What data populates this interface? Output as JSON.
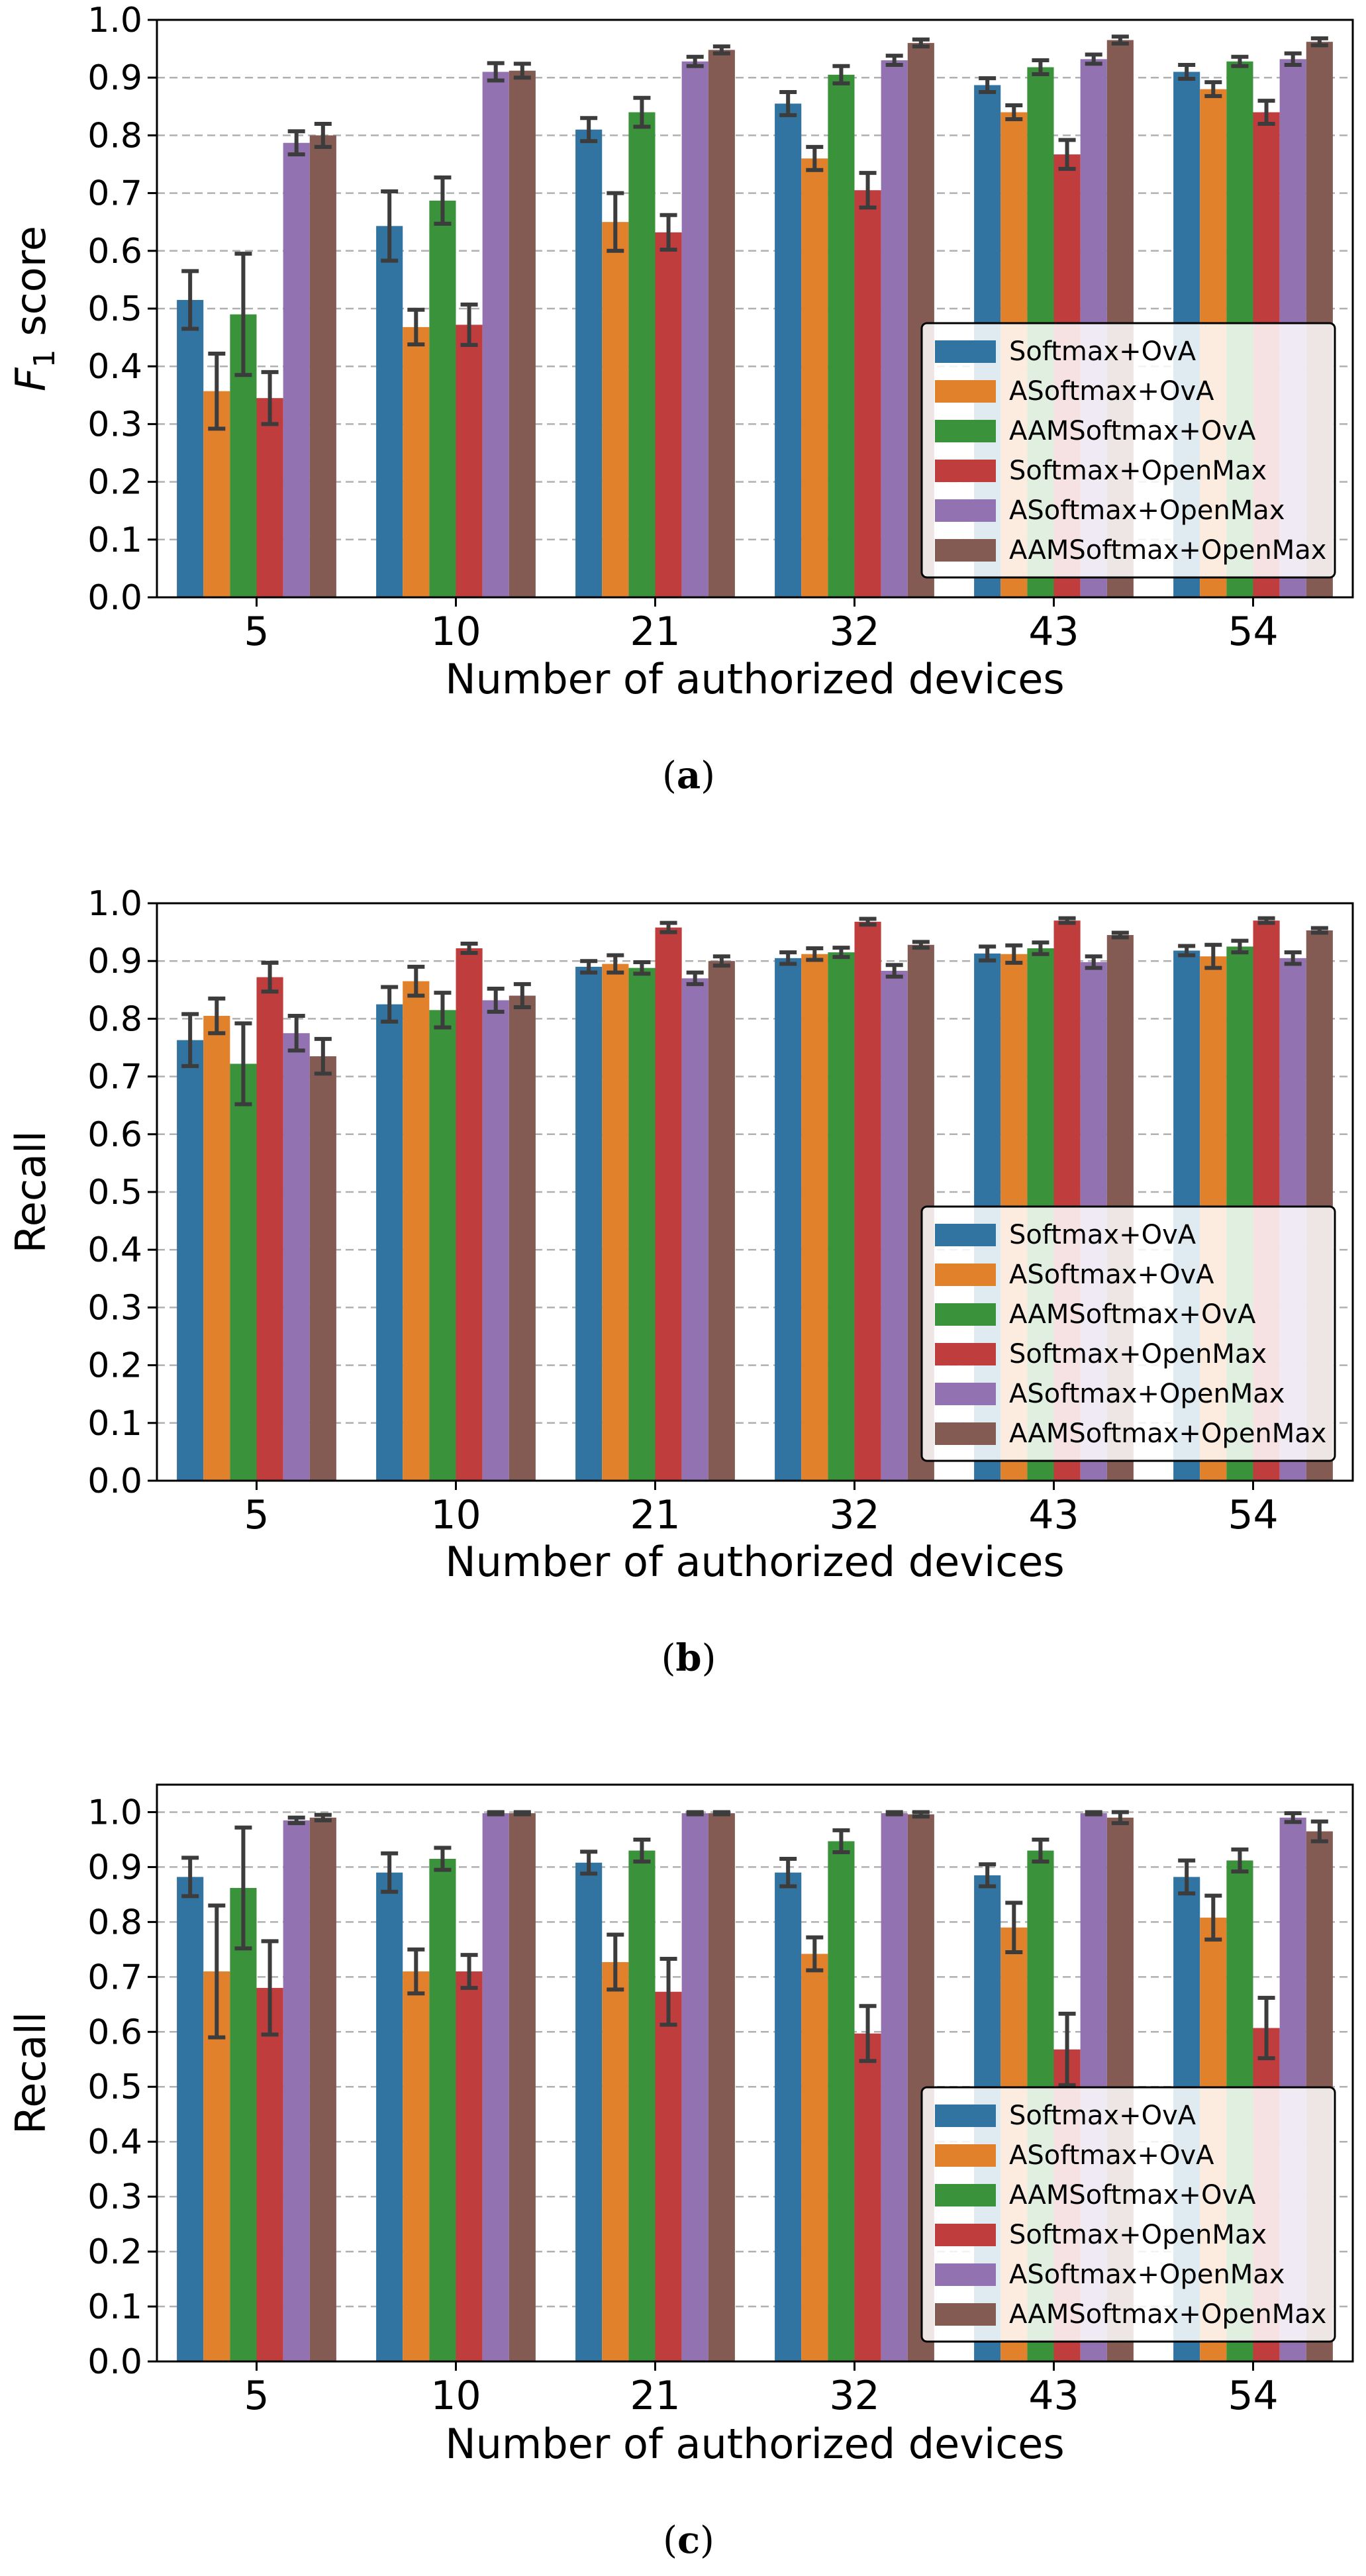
{
  "colors": {
    "series": [
      "#3274a1",
      "#e1812c",
      "#3a923a",
      "#c03d3e",
      "#9372b2",
      "#845b53"
    ],
    "grid": "#b0b0b0",
    "errbar": "#3c3c3c"
  },
  "legend_labels": [
    "Softmax+OvA",
    "ASoftmax+OvA",
    "AAMSoftmax+OvA",
    "Softmax+OpenMax",
    "ASoftmax+OpenMax",
    "AAMSoftmax+OpenMax"
  ],
  "chart_data": [
    {
      "type": "bar",
      "panel": "(a)",
      "caption_letter": "a",
      "ylabel": "F",
      "ylabel_sub": "1",
      "ylabel_suffix": " score",
      "xlabel": "Number of authorized devices",
      "categories": [
        "5",
        "10",
        "21",
        "32",
        "43",
        "54"
      ],
      "ylim": [
        0,
        1.0
      ],
      "yticks": [
        "0.0",
        "0.1",
        "0.2",
        "0.3",
        "0.4",
        "0.5",
        "0.6",
        "0.7",
        "0.8",
        "0.9",
        "1.0"
      ],
      "legend_position": "lower-right",
      "series": [
        {
          "name": "Softmax+OvA",
          "values": [
            0.515,
            0.643,
            0.81,
            0.855,
            0.887,
            0.91
          ],
          "errors": [
            0.05,
            0.06,
            0.02,
            0.02,
            0.012,
            0.012
          ]
        },
        {
          "name": "ASoftmax+OvA",
          "values": [
            0.357,
            0.468,
            0.65,
            0.76,
            0.84,
            0.88
          ],
          "errors": [
            0.065,
            0.03,
            0.05,
            0.02,
            0.012,
            0.012
          ]
        },
        {
          "name": "AAMSoftmax+OvA",
          "values": [
            0.49,
            0.687,
            0.84,
            0.905,
            0.918,
            0.928
          ],
          "errors": [
            0.105,
            0.04,
            0.025,
            0.015,
            0.012,
            0.008
          ]
        },
        {
          "name": "Softmax+OpenMax",
          "values": [
            0.345,
            0.472,
            0.632,
            0.705,
            0.767,
            0.84
          ],
          "errors": [
            0.045,
            0.035,
            0.03,
            0.03,
            0.025,
            0.02
          ]
        },
        {
          "name": "ASoftmax+OpenMax",
          "values": [
            0.787,
            0.91,
            0.928,
            0.93,
            0.932,
            0.932
          ],
          "errors": [
            0.02,
            0.015,
            0.008,
            0.008,
            0.008,
            0.01
          ]
        },
        {
          "name": "AAMSoftmax+OpenMax",
          "values": [
            0.8,
            0.912,
            0.948,
            0.96,
            0.965,
            0.962
          ],
          "errors": [
            0.02,
            0.012,
            0.006,
            0.006,
            0.006,
            0.006
          ]
        }
      ]
    },
    {
      "type": "bar",
      "panel": "(b)",
      "caption_letter": "b",
      "ylabel": "Recall",
      "ylabel_sub": "",
      "ylabel_suffix": "",
      "xlabel": "Number of authorized devices",
      "categories": [
        "5",
        "10",
        "21",
        "32",
        "43",
        "54"
      ],
      "ylim": [
        0,
        1.0
      ],
      "yticks": [
        "0.0",
        "0.1",
        "0.2",
        "0.3",
        "0.4",
        "0.5",
        "0.6",
        "0.7",
        "0.8",
        "0.9",
        "1.0"
      ],
      "legend_position": "lower-right",
      "series": [
        {
          "name": "Softmax+OvA",
          "values": [
            0.763,
            0.825,
            0.89,
            0.905,
            0.913,
            0.918
          ],
          "errors": [
            0.045,
            0.03,
            0.01,
            0.01,
            0.012,
            0.008
          ]
        },
        {
          "name": "ASoftmax+OvA",
          "values": [
            0.805,
            0.865,
            0.895,
            0.912,
            0.912,
            0.908
          ],
          "errors": [
            0.03,
            0.025,
            0.015,
            0.01,
            0.015,
            0.02
          ]
        },
        {
          "name": "AAMSoftmax+OvA",
          "values": [
            0.722,
            0.815,
            0.888,
            0.915,
            0.922,
            0.925
          ],
          "errors": [
            0.07,
            0.03,
            0.01,
            0.008,
            0.01,
            0.01
          ]
        },
        {
          "name": "Softmax+OpenMax",
          "values": [
            0.872,
            0.922,
            0.958,
            0.968,
            0.97,
            0.97
          ],
          "errors": [
            0.025,
            0.008,
            0.008,
            0.005,
            0.004,
            0.004
          ]
        },
        {
          "name": "ASoftmax+OpenMax",
          "values": [
            0.775,
            0.832,
            0.87,
            0.883,
            0.898,
            0.905
          ],
          "errors": [
            0.03,
            0.02,
            0.01,
            0.01,
            0.01,
            0.01
          ]
        },
        {
          "name": "AAMSoftmax+OpenMax",
          "values": [
            0.735,
            0.84,
            0.9,
            0.928,
            0.945,
            0.953
          ],
          "errors": [
            0.03,
            0.02,
            0.008,
            0.005,
            0.004,
            0.004
          ]
        }
      ]
    },
    {
      "type": "bar",
      "panel": "(c)",
      "caption_letter": "c",
      "ylabel": "Recall",
      "ylabel_sub": "",
      "ylabel_suffix": "",
      "xlabel": "Number of authorized devices",
      "categories": [
        "5",
        "10",
        "21",
        "32",
        "43",
        "54"
      ],
      "ylim": [
        0,
        1.05
      ],
      "yticks": [
        "0.0",
        "0.1",
        "0.2",
        "0.3",
        "0.4",
        "0.5",
        "0.6",
        "0.7",
        "0.8",
        "0.9",
        "1.0"
      ],
      "legend_position": "lower-right",
      "series": [
        {
          "name": "Softmax+OvA",
          "values": [
            0.882,
            0.89,
            0.908,
            0.89,
            0.885,
            0.882
          ],
          "errors": [
            0.035,
            0.035,
            0.02,
            0.025,
            0.02,
            0.03
          ]
        },
        {
          "name": "ASoftmax+OvA",
          "values": [
            0.71,
            0.71,
            0.727,
            0.742,
            0.79,
            0.808
          ],
          "errors": [
            0.12,
            0.04,
            0.05,
            0.03,
            0.045,
            0.04
          ]
        },
        {
          "name": "AAMSoftmax+OvA",
          "values": [
            0.862,
            0.915,
            0.93,
            0.947,
            0.93,
            0.912
          ],
          "errors": [
            0.11,
            0.02,
            0.02,
            0.02,
            0.02,
            0.02
          ]
        },
        {
          "name": "Softmax+OpenMax",
          "values": [
            0.68,
            0.71,
            0.673,
            0.597,
            0.568,
            0.607
          ],
          "errors": [
            0.085,
            0.03,
            0.06,
            0.05,
            0.065,
            0.055
          ]
        },
        {
          "name": "ASoftmax+OpenMax",
          "values": [
            0.985,
            0.998,
            0.998,
            0.998,
            0.998,
            0.99
          ],
          "errors": [
            0.005,
            0.002,
            0.002,
            0.002,
            0.002,
            0.008
          ]
        },
        {
          "name": "AAMSoftmax+OpenMax",
          "values": [
            0.99,
            0.998,
            0.998,
            0.996,
            0.99,
            0.965
          ],
          "errors": [
            0.005,
            0.002,
            0.002,
            0.004,
            0.01,
            0.018
          ]
        }
      ]
    }
  ]
}
